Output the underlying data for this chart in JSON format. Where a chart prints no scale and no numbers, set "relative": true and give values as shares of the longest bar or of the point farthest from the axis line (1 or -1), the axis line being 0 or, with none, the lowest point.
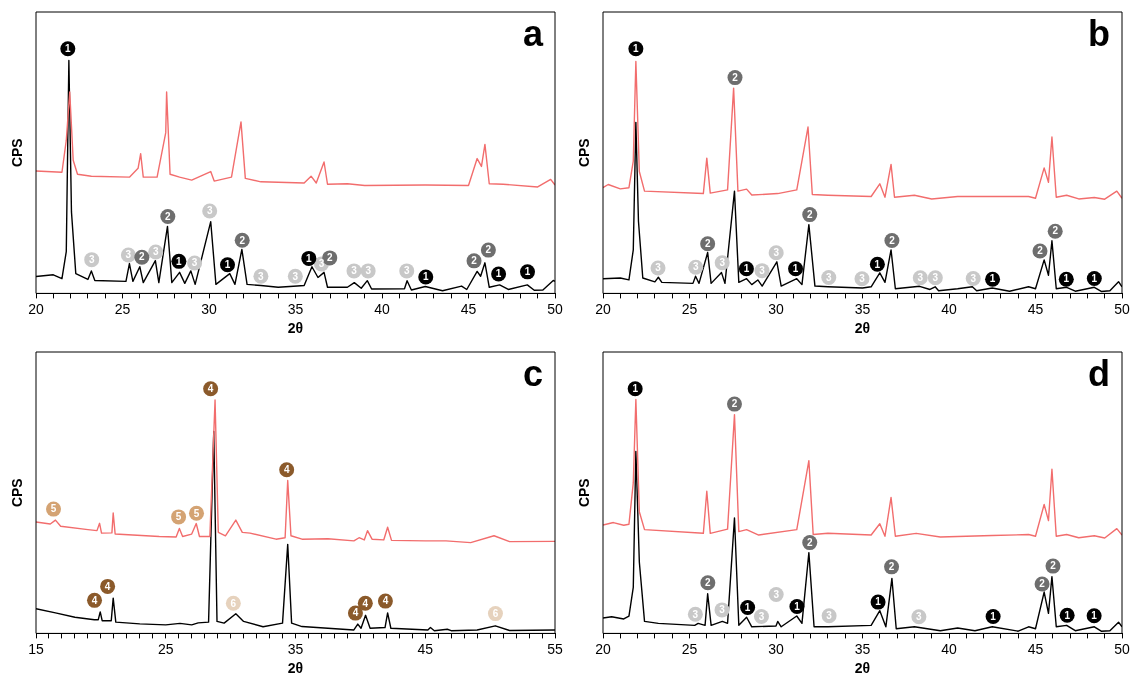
{
  "chart_data": [
    {
      "type": "line",
      "title": "a",
      "xlabel": "2θ",
      "ylabel": "CPS",
      "relative": true,
      "marker": "none",
      "tick_labels": "x",
      "xlim": [
        20,
        50
      ],
      "xticks": [
        20,
        {
          "value": 21,
          "label": null
        },
        {
          "value": 22,
          "label": null
        },
        {
          "value": 23,
          "label": null
        },
        {
          "value": 24,
          "label": null
        },
        25,
        {
          "value": 26,
          "label": null
        },
        {
          "value": 27,
          "label": null
        },
        {
          "value": 28,
          "label": null
        },
        {
          "value": 29,
          "label": null
        },
        30,
        {
          "value": 31,
          "label": null
        },
        {
          "value": 32,
          "label": null
        },
        {
          "value": 33,
          "label": null
        },
        {
          "value": 34,
          "label": null
        },
        35,
        {
          "value": 36,
          "label": null
        },
        {
          "value": 37,
          "label": null
        },
        {
          "value": 38,
          "label": null
        },
        {
          "value": 39,
          "label": null
        },
        40,
        {
          "value": 41,
          "label": null
        },
        {
          "value": 42,
          "label": null
        },
        {
          "value": 43,
          "label": null
        },
        {
          "value": 44,
          "label": null
        },
        45,
        {
          "value": 46,
          "label": null
        },
        {
          "value": 47,
          "label": null
        },
        {
          "value": 48,
          "label": null
        },
        {
          "value": 49,
          "label": null
        },
        50
      ],
      "series": [
        {
          "color": "#f26d6d",
          "x": [
            20,
            21.5,
            21.75,
            21.95,
            22.15,
            22.4,
            23.2,
            25.4,
            25.9,
            26.05,
            26.2,
            27,
            27.5,
            27.55,
            27.75,
            28.3,
            29,
            30.1,
            30.3,
            31.3,
            31.85,
            32.1,
            33,
            35.5,
            35.9,
            36.2,
            36.65,
            36.85,
            38,
            39,
            42.5,
            45,
            45.5,
            45.75,
            45.95,
            46.2,
            47,
            49,
            49.75,
            50
          ],
          "values": [
            0.5,
            0.495,
            0.625,
            0.823,
            0.544,
            0.487,
            0.479,
            0.475,
            0.511,
            0.571,
            0.475,
            0.475,
            0.657,
            0.823,
            0.487,
            0.475,
            0.463,
            0.498,
            0.459,
            0.475,
            0.701,
            0.47,
            0.456,
            0.451,
            0.479,
            0.451,
            0.537,
            0.446,
            0.448,
            0.441,
            0.443,
            0.441,
            0.551,
            0.519,
            0.609,
            0.448,
            0.446,
            0.435,
            0.466,
            0.443
          ]
        },
        {
          "color": "#000000",
          "x": [
            20,
            21,
            21.5,
            21.75,
            21.9,
            22.05,
            22.3,
            23,
            23.2,
            23.4,
            25.2,
            25.4,
            25.6,
            26,
            26.2,
            26.9,
            27.1,
            27.6,
            27.85,
            28.3,
            28.6,
            28.95,
            29.2,
            30.1,
            30.4,
            31.2,
            31.5,
            31.9,
            32.2,
            33,
            34,
            35.1,
            35.5,
            35.95,
            36.3,
            36.65,
            36.85,
            38,
            38.4,
            38.8,
            39.15,
            39.4,
            41.3,
            41.45,
            41.7,
            42.5,
            43.5,
            44.6,
            44.9,
            45.5,
            45.7,
            45.95,
            46.2,
            46.8,
            47.3,
            48.4,
            48.8,
            49.3,
            49.9,
            50
          ],
          "values": [
            0.069,
            0.076,
            0.06,
            0.171,
            0.952,
            0.333,
            0.081,
            0.057,
            0.092,
            0.053,
            0.049,
            0.122,
            0.049,
            0.109,
            0.044,
            0.134,
            0.044,
            0.274,
            0.044,
            0.086,
            0.041,
            0.092,
            0.037,
            0.293,
            0.037,
            0.081,
            0.037,
            0.18,
            0.037,
            0.032,
            0.025,
            0.03,
            0.032,
            0.109,
            0.065,
            0.086,
            0.025,
            0.025,
            0.044,
            0.021,
            0.052,
            0.018,
            0.019,
            0.052,
            0.014,
            0.028,
            0.011,
            0.03,
            0.016,
            0.09,
            0.07,
            0.125,
            0.025,
            0.035,
            0.016,
            0.035,
            0.013,
            0.014,
            0.053,
            0.049
          ]
        },
        {
          "type": "scatter",
          "name": "1",
          "color": "#000000",
          "marker": "circle",
          "x": [
            21.84,
            28.26,
            31.07,
            35.77,
            42.53,
            46.74,
            48.41
          ],
          "values": [
            1,
            0.131,
            0.117,
            0.143,
            0.067,
            0.079,
            0.088
          ]
        },
        {
          "type": "scatter",
          "name": "2",
          "color": "#6e6e6e",
          "marker": "circle",
          "x": [
            26.12,
            27.62,
            31.92,
            36.98,
            45.32,
            46.15
          ],
          "values": [
            0.148,
            0.314,
            0.217,
            0.145,
            0.133,
            0.177
          ]
        },
        {
          "type": "scatter",
          "name": "3",
          "color": "#c8c8c8",
          "marker": "circle",
          "x": [
            23.22,
            25.34,
            26.92,
            29.17,
            30.04,
            33,
            34.99,
            36.5,
            38.38,
            39.2,
            41.43
          ],
          "values": [
            0.138,
            0.157,
            0.169,
            0.124,
            0.337,
            0.07,
            0.07,
            0.12,
            0.092,
            0.092,
            0.092
          ]
        }
      ]
    },
    {
      "type": "line",
      "title": "b",
      "xlabel": "2θ",
      "ylabel": "CPS",
      "relative": true,
      "marker": "none",
      "tick_labels": "x",
      "xlim": [
        20,
        50
      ],
      "xticks": [
        20,
        {
          "value": 21,
          "label": null
        },
        {
          "value": 22,
          "label": null
        },
        {
          "value": 23,
          "label": null
        },
        {
          "value": 24,
          "label": null
        },
        25,
        {
          "value": 26,
          "label": null
        },
        {
          "value": 27,
          "label": null
        },
        {
          "value": 28,
          "label": null
        },
        {
          "value": 29,
          "label": null
        },
        30,
        {
          "value": 31,
          "label": null
        },
        {
          "value": 32,
          "label": null
        },
        {
          "value": 33,
          "label": null
        },
        {
          "value": 34,
          "label": null
        },
        35,
        {
          "value": 36,
          "label": null
        },
        {
          "value": 37,
          "label": null
        },
        {
          "value": 38,
          "label": null
        },
        {
          "value": 39,
          "label": null
        },
        40,
        {
          "value": 41,
          "label": null
        },
        {
          "value": 42,
          "label": null
        },
        {
          "value": 43,
          "label": null
        },
        {
          "value": 44,
          "label": null
        },
        45,
        {
          "value": 46,
          "label": null
        },
        {
          "value": 47,
          "label": null
        },
        {
          "value": 48,
          "label": null
        },
        {
          "value": 49,
          "label": null
        },
        50
      ],
      "series": [
        {
          "color": "#f26d6d",
          "x": [
            20,
            20.3,
            21,
            21.5,
            21.75,
            21.9,
            22.1,
            22.4,
            25.8,
            26,
            26.2,
            27.2,
            27.55,
            27.8,
            28.3,
            28.6,
            30.1,
            31.2,
            31.85,
            32.1,
            33,
            35.5,
            36,
            36.3,
            36.65,
            36.85,
            38,
            39,
            40.5,
            42.5,
            44.6,
            45,
            45.5,
            45.75,
            45.95,
            46.2,
            46.8,
            47.5,
            48.4,
            49,
            49.7,
            50
          ],
          "values": [
            0.432,
            0.445,
            0.427,
            0.432,
            0.541,
            0.948,
            0.498,
            0.418,
            0.408,
            0.553,
            0.41,
            0.423,
            0.839,
            0.418,
            0.426,
            0.402,
            0.408,
            0.423,
            0.68,
            0.404,
            0.401,
            0.396,
            0.448,
            0.393,
            0.527,
            0.393,
            0.401,
            0.386,
            0.396,
            0.396,
            0.396,
            0.389,
            0.513,
            0.454,
            0.639,
            0.393,
            0.401,
            0.386,
            0.392,
            0.385,
            0.418,
            0.389
          ]
        },
        {
          "color": "#000000",
          "x": [
            20,
            21,
            21.5,
            21.75,
            21.9,
            22.05,
            22.3,
            23,
            23.2,
            23.4,
            25.2,
            25.35,
            25.55,
            26.05,
            26.25,
            26.85,
            27.05,
            27.6,
            27.85,
            28.3,
            28.6,
            28.95,
            29.2,
            30.05,
            30.3,
            31.2,
            31.5,
            31.9,
            32.25,
            33,
            35,
            35.5,
            36,
            36.3,
            36.65,
            36.9,
            38.3,
            38.9,
            39.2,
            39.4,
            40.5,
            41.35,
            41.6,
            42.5,
            43.5,
            44.6,
            45,
            45.5,
            45.75,
            45.95,
            46.2,
            46.8,
            47.3,
            48.4,
            48.8,
            49.3,
            49.8,
            50
          ],
          "values": [
            0.06,
            0.063,
            0.055,
            0.178,
            0.699,
            0.295,
            0.063,
            0.047,
            0.066,
            0.045,
            0.041,
            0.07,
            0.041,
            0.167,
            0.041,
            0.085,
            0.041,
            0.418,
            0.045,
            0.06,
            0.036,
            0.055,
            0.03,
            0.129,
            0.03,
            0.06,
            0.036,
            0.281,
            0.03,
            0.027,
            0.022,
            0.027,
            0.084,
            0.045,
            0.178,
            0.019,
            0.029,
            0.016,
            0.027,
            0.011,
            0.019,
            0.027,
            0.011,
            0.022,
            0.009,
            0.027,
            0.019,
            0.137,
            0.074,
            0.215,
            0.019,
            0.025,
            0.009,
            0.025,
            0.008,
            0.011,
            0.048,
            0.027
          ]
        },
        {
          "type": "scatter",
          "name": "1",
          "color": "#000000",
          "marker": "circle",
          "x": [
            21.9,
            28.29,
            31.13,
            35.86,
            42.52,
            46.78,
            48.4
          ],
          "values": [
            1,
            0.101,
            0.101,
            0.119,
            0.058,
            0.058,
            0.061
          ]
        },
        {
          "type": "scatter",
          "name": "2",
          "color": "#6e6e6e",
          "marker": "circle",
          "x": [
            26.05,
            27.63,
            31.95,
            36.7,
            45.26,
            46.14
          ],
          "values": [
            0.203,
            0.882,
            0.322,
            0.216,
            0.173,
            0.254
          ]
        },
        {
          "type": "scatter",
          "name": "3",
          "color": "#c8c8c8",
          "marker": "circle",
          "x": [
            23.18,
            25.36,
            26.89,
            29.19,
            30.01,
            33.05,
            34.97,
            38.34,
            39.21,
            41.4
          ],
          "values": [
            0.104,
            0.107,
            0.125,
            0.093,
            0.166,
            0.065,
            0.06,
            0.064,
            0.064,
            0.061
          ]
        }
      ]
    },
    {
      "type": "line",
      "title": "c",
      "xlabel": "2θ",
      "ylabel": "CPS",
      "relative": true,
      "marker": "none",
      "tick_labels": "x",
      "xlim": [
        15,
        55
      ],
      "xticks": [
        15,
        {
          "value": 16,
          "label": null
        },
        {
          "value": 17,
          "label": null
        },
        {
          "value": 18,
          "label": null
        },
        {
          "value": 19,
          "label": null
        },
        {
          "value": 20,
          "label": null
        },
        {
          "value": 21,
          "label": null
        },
        {
          "value": 22,
          "label": null
        },
        {
          "value": 23,
          "label": null
        },
        {
          "value": 24,
          "label": null
        },
        25,
        {
          "value": 26,
          "label": null
        },
        {
          "value": 27,
          "label": null
        },
        {
          "value": 28,
          "label": null
        },
        {
          "value": 29,
          "label": null
        },
        {
          "value": 30,
          "label": null
        },
        {
          "value": 31,
          "label": null
        },
        {
          "value": 32,
          "label": null
        },
        {
          "value": 33,
          "label": null
        },
        {
          "value": 34,
          "label": null
        },
        35,
        {
          "value": 36,
          "label": null
        },
        {
          "value": 37,
          "label": null
        },
        {
          "value": 38,
          "label": null
        },
        {
          "value": 39,
          "label": null
        },
        {
          "value": 40,
          "label": null
        },
        {
          "value": 41,
          "label": null
        },
        {
          "value": 42,
          "label": null
        },
        {
          "value": 43,
          "label": null
        },
        {
          "value": 44,
          "label": null
        },
        45,
        {
          "value": 46,
          "label": null
        },
        {
          "value": 47,
          "label": null
        },
        {
          "value": 48,
          "label": null
        },
        {
          "value": 49,
          "label": null
        },
        {
          "value": 50,
          "label": null
        },
        {
          "value": 51,
          "label": null
        },
        {
          "value": 52,
          "label": null
        },
        {
          "value": 53,
          "label": null
        },
        {
          "value": 54,
          "label": null
        },
        55
      ],
      "series": [
        {
          "color": "#f26d6d",
          "x": [
            15,
            16.1,
            16.5,
            16.9,
            19,
            19.7,
            19.9,
            20.05,
            20.85,
            20.95,
            21.1,
            24.5,
            25.8,
            26.05,
            26.3,
            27,
            27.35,
            27.6,
            28.4,
            28.8,
            29.05,
            29.6,
            30.4,
            30.9,
            31.5,
            33.5,
            34.2,
            34.4,
            34.65,
            35.5,
            37.5,
            39.5,
            39.9,
            40.3,
            40.55,
            40.9,
            41.8,
            42.1,
            42.4,
            45,
            46.6,
            48.5,
            50.3,
            51.5,
            55
          ],
          "values": [
            0.455,
            0.447,
            0.463,
            0.438,
            0.424,
            0.42,
            0.45,
            0.41,
            0.411,
            0.492,
            0.406,
            0.396,
            0.394,
            0.429,
            0.396,
            0.406,
            0.449,
            0.396,
            0.396,
            0.954,
            0.413,
            0.399,
            0.463,
            0.413,
            0.41,
            0.385,
            0.391,
            0.625,
            0.399,
            0.385,
            0.387,
            0.378,
            0.391,
            0.382,
            0.42,
            0.385,
            0.382,
            0.434,
            0.38,
            0.378,
            0.378,
            0.371,
            0.399,
            0.375,
            0.376
          ]
        },
        {
          "color": "#000000",
          "x": [
            15,
            16.5,
            18,
            19.5,
            19.8,
            19.95,
            20.1,
            20.8,
            20.95,
            21.15,
            23,
            25,
            26.1,
            27,
            27.5,
            28.3,
            28.7,
            28.95,
            29.5,
            30.4,
            31,
            32.5,
            34,
            34.4,
            34.7,
            35.5,
            37.5,
            39.5,
            39.8,
            40.05,
            40.4,
            40.75,
            41.9,
            42.1,
            42.35,
            45.2,
            45.4,
            45.7,
            46.7,
            47,
            49,
            50.4,
            51.5,
            55
          ],
          "values": [
            0.101,
            0.084,
            0.066,
            0.056,
            0.056,
            0.088,
            0.052,
            0.052,
            0.144,
            0.046,
            0.039,
            0.035,
            0.041,
            0.035,
            0.043,
            0.046,
            0.825,
            0.049,
            0.042,
            0.08,
            0.049,
            0.027,
            0.042,
            0.364,
            0.042,
            0.028,
            0.021,
            0.014,
            0.038,
            0.021,
            0.074,
            0.021,
            0.024,
            0.084,
            0.021,
            0.014,
            0.024,
            0.011,
            0.017,
            0.011,
            0.014,
            0.031,
            0.012,
            0.014
          ]
        },
        {
          "type": "scatter",
          "name": "4",
          "color": "#8b5a2b",
          "marker": "circle",
          "x": [
            19.51,
            20.52,
            28.46,
            34.32,
            39.62,
            40.38,
            41.93
          ],
          "values": [
            0.135,
            0.192,
            1,
            0.669,
            0.083,
            0.123,
            0.132
          ]
        },
        {
          "type": "scatter",
          "name": "5",
          "color": "#d4a373",
          "marker": "circle",
          "x": [
            16.35,
            25.99,
            27.37
          ],
          "values": [
            0.508,
            0.476,
            0.491
          ]
        },
        {
          "type": "scatter",
          "name": "6",
          "color": "#e6d2bd",
          "marker": "circle",
          "x": [
            30.21,
            50.41
          ],
          "values": [
            0.123,
            0.081
          ]
        }
      ]
    },
    {
      "type": "line",
      "title": "d",
      "xlabel": "2θ",
      "ylabel": "CPS",
      "relative": true,
      "marker": "none",
      "tick_labels": "x",
      "xlim": [
        20,
        50
      ],
      "xticks": [
        20,
        {
          "value": 21,
          "label": null
        },
        {
          "value": 22,
          "label": null
        },
        {
          "value": 23,
          "label": null
        },
        {
          "value": 24,
          "label": null
        },
        25,
        {
          "value": 26,
          "label": null
        },
        {
          "value": 27,
          "label": null
        },
        {
          "value": 28,
          "label": null
        },
        {
          "value": 29,
          "label": null
        },
        30,
        {
          "value": 31,
          "label": null
        },
        {
          "value": 32,
          "label": null
        },
        {
          "value": 33,
          "label": null
        },
        {
          "value": 34,
          "label": null
        },
        35,
        {
          "value": 36,
          "label": null
        },
        {
          "value": 37,
          "label": null
        },
        {
          "value": 38,
          "label": null
        },
        {
          "value": 39,
          "label": null
        },
        40,
        {
          "value": 41,
          "label": null
        },
        {
          "value": 42,
          "label": null
        },
        {
          "value": 43,
          "label": null
        },
        {
          "value": 44,
          "label": null
        },
        45,
        {
          "value": 46,
          "label": null
        },
        {
          "value": 47,
          "label": null
        },
        {
          "value": 48,
          "label": null
        },
        {
          "value": 49,
          "label": null
        },
        50
      ],
      "series": [
        {
          "color": "#f26d6d",
          "x": [
            20,
            20.6,
            21.2,
            21.5,
            21.75,
            21.9,
            22.1,
            22.4,
            25.8,
            26,
            26.2,
            27.2,
            27.6,
            27.85,
            28.3,
            29,
            31.2,
            31.9,
            32.15,
            33,
            35.5,
            36,
            36.3,
            36.65,
            36.9,
            38.1,
            39.5,
            42.5,
            44.6,
            45,
            45.5,
            45.75,
            45.95,
            46.2,
            46.8,
            47.5,
            48.4,
            49,
            49.7,
            50
          ],
          "values": [
            0.443,
            0.453,
            0.442,
            0.446,
            0.615,
            0.956,
            0.497,
            0.424,
            0.409,
            0.581,
            0.409,
            0.426,
            0.894,
            0.416,
            0.424,
            0.402,
            0.424,
            0.706,
            0.404,
            0.409,
            0.402,
            0.448,
            0.397,
            0.556,
            0.397,
            0.409,
            0.394,
            0.4,
            0.404,
            0.397,
            0.527,
            0.461,
            0.671,
            0.397,
            0.404,
            0.391,
            0.399,
            0.39,
            0.428,
            0.402
          ]
        },
        {
          "color": "#000000",
          "x": [
            20,
            20.5,
            21.2,
            21.5,
            21.75,
            21.9,
            22.1,
            22.4,
            23.2,
            25.3,
            25.5,
            25.9,
            26.05,
            26.25,
            26.9,
            27.2,
            27.6,
            27.85,
            28.3,
            28.6,
            30,
            30.1,
            30.3,
            31.2,
            31.5,
            31.9,
            32.2,
            33,
            35.5,
            36,
            36.35,
            36.7,
            36.95,
            38,
            39.5,
            40.5,
            41.5,
            42.5,
            44,
            44.6,
            45,
            45.5,
            45.75,
            45.95,
            46.2,
            46.8,
            47.3,
            48.4,
            48.8,
            49.3,
            49.8,
            50
          ],
          "values": [
            0.063,
            0.068,
            0.059,
            0.071,
            0.188,
            0.744,
            0.292,
            0.049,
            0.041,
            0.033,
            0.041,
            0.033,
            0.162,
            0.033,
            0.049,
            0.041,
            0.472,
            0.033,
            0.066,
            0.027,
            0.03,
            0.049,
            0.027,
            0.071,
            0.041,
            0.33,
            0.027,
            0.027,
            0.033,
            0.093,
            0.027,
            0.225,
            0.019,
            0.027,
            0.011,
            0.022,
            0.011,
            0.027,
            0.009,
            0.027,
            0.019,
            0.169,
            0.082,
            0.232,
            0.027,
            0.033,
            0.011,
            0.027,
            0.009,
            0.011,
            0.046,
            0.027
          ]
        },
        {
          "type": "scatter",
          "name": "1",
          "color": "#000000",
          "marker": "circle",
          "x": [
            21.86,
            28.36,
            31.21,
            35.9,
            42.55,
            46.83,
            48.39
          ],
          "values": [
            1,
            0.106,
            0.11,
            0.128,
            0.069,
            0.074,
            0.072
          ]
        },
        {
          "type": "scatter",
          "name": "2",
          "color": "#6e6e6e",
          "marker": "circle",
          "x": [
            26.06,
            27.6,
            31.95,
            36.68,
            45.38,
            46.01
          ],
          "values": [
            0.207,
            0.937,
            0.371,
            0.272,
            0.202,
            0.275
          ]
        },
        {
          "type": "scatter",
          "name": "3",
          "color": "#c8c8c8",
          "marker": "circle",
          "x": [
            25.34,
            26.88,
            29.16,
            30.01,
            33.07,
            38.26
          ],
          "values": [
            0.078,
            0.096,
            0.069,
            0.159,
            0.072,
            0.068
          ]
        }
      ]
    }
  ]
}
